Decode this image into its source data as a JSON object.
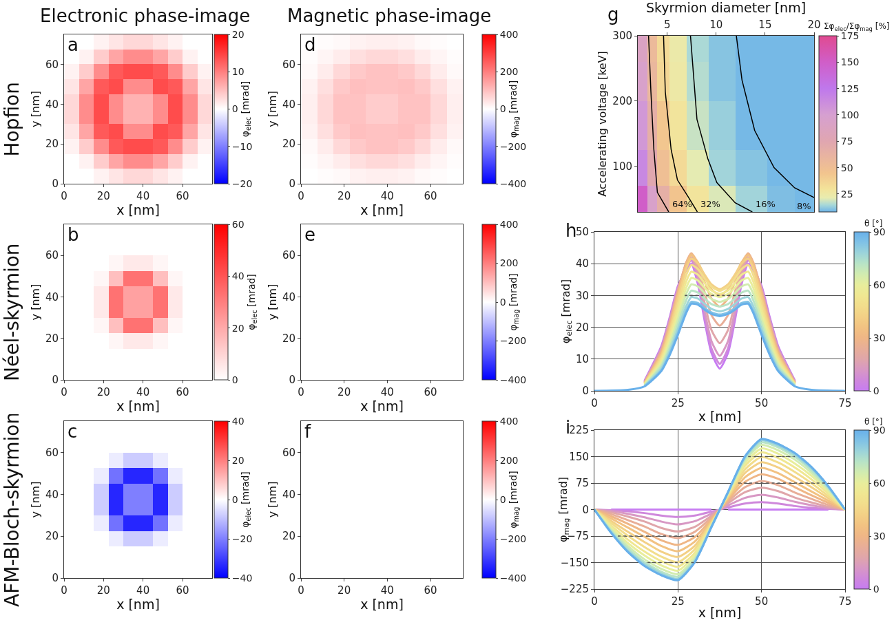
{
  "chart_data": [
    {
      "type": "heatmap",
      "title": "Electronic phase-image",
      "xlabel": "x [nm]",
      "ylabel": "y [nm]",
      "clabel": "φ$_{elec}$ [mrad]",
      "annotations": [
        "a",
        "Hopfion"
      ],
      "x": [
        3.75,
        11.25,
        18.75,
        26.25,
        33.75,
        41.25,
        48.75,
        56.25,
        63.75,
        71.25
      ],
      "y": [
        71.25,
        63.75,
        56.25,
        48.75,
        41.25,
        33.75,
        26.25,
        18.75,
        11.25,
        3.75
      ],
      "cells": [
        [
          0,
          0,
          1,
          2,
          3,
          3,
          2,
          1,
          0,
          0
        ],
        [
          0,
          1,
          4,
          7,
          9,
          9,
          7,
          4,
          1,
          0
        ],
        [
          1,
          4,
          9,
          13,
          14,
          14,
          13,
          9,
          4,
          1
        ],
        [
          2,
          7,
          13,
          14,
          9,
          9,
          14,
          13,
          7,
          2
        ],
        [
          3,
          9,
          14,
          9,
          6,
          6,
          9,
          14,
          9,
          3
        ],
        [
          3,
          9,
          14,
          9,
          6,
          6,
          9,
          14,
          9,
          3
        ],
        [
          2,
          7,
          13,
          14,
          9,
          9,
          14,
          13,
          7,
          2
        ],
        [
          1,
          4,
          9,
          13,
          14,
          14,
          13,
          9,
          4,
          1
        ],
        [
          0,
          1,
          4,
          7,
          9,
          9,
          7,
          4,
          1,
          0
        ],
        [
          0,
          0,
          1,
          2,
          3,
          3,
          2,
          1,
          0,
          0
        ]
      ],
      "xlim": [
        0,
        75
      ],
      "ylim": [
        0,
        75
      ],
      "xticks": [
        0,
        20,
        40,
        60
      ],
      "yticks": [
        0,
        20,
        40,
        60
      ],
      "clim": [
        -20,
        20
      ],
      "cticks": [
        -20,
        -10,
        0,
        10,
        20
      ]
    },
    {
      "type": "heatmap",
      "xlabel": "x [nm]",
      "ylabel": "y [nm]",
      "clabel": "φ$_{elec}$ [mrad]",
      "annotations": [
        "b",
        "Néel-skyrmion"
      ],
      "x": [
        3.75,
        11.25,
        18.75,
        26.25,
        33.75,
        41.25,
        48.75,
        56.25,
        63.75,
        71.25
      ],
      "y": [
        71.25,
        63.75,
        56.25,
        48.75,
        41.25,
        33.75,
        26.25,
        18.75,
        11.25,
        3.75
      ],
      "cells": [
        [
          0,
          0,
          0,
          0,
          0,
          0,
          0,
          0,
          0,
          0
        ],
        [
          0,
          0,
          0,
          0,
          0,
          0,
          0,
          0,
          0,
          0
        ],
        [
          0,
          0,
          0,
          2,
          5,
          5,
          2,
          0,
          0,
          0
        ],
        [
          0,
          0,
          2,
          15,
          33,
          33,
          15,
          2,
          0,
          0
        ],
        [
          0,
          0,
          5,
          33,
          22,
          22,
          33,
          5,
          0,
          0
        ],
        [
          0,
          0,
          5,
          33,
          22,
          22,
          33,
          5,
          0,
          0
        ],
        [
          0,
          0,
          2,
          15,
          33,
          33,
          15,
          2,
          0,
          0
        ],
        [
          0,
          0,
          0,
          2,
          5,
          5,
          2,
          0,
          0,
          0
        ],
        [
          0,
          0,
          0,
          0,
          0,
          0,
          0,
          0,
          0,
          0
        ],
        [
          0,
          0,
          0,
          0,
          0,
          0,
          0,
          0,
          0,
          0
        ]
      ],
      "xlim": [
        0,
        75
      ],
      "ylim": [
        0,
        75
      ],
      "xticks": [
        0,
        20,
        40,
        60
      ],
      "yticks": [
        0,
        20,
        40,
        60
      ],
      "clim": [
        0,
        60
      ],
      "cticks": [
        0,
        20,
        40,
        60
      ]
    },
    {
      "type": "heatmap",
      "xlabel": "x [nm]",
      "ylabel": "y [nm]",
      "clabel": "φ$_{elec}$ [mrad]",
      "annotations": [
        "c",
        "AFM-Bloch-skyrmion"
      ],
      "x": [
        3.75,
        11.25,
        18.75,
        26.25,
        33.75,
        41.25,
        48.75,
        56.25,
        63.75,
        71.25
      ],
      "y": [
        71.25,
        63.75,
        56.25,
        48.75,
        41.25,
        33.75,
        26.25,
        18.75,
        11.25,
        3.75
      ],
      "cells": [
        [
          0,
          0,
          0,
          0,
          0,
          0,
          0,
          0,
          0,
          0
        ],
        [
          0,
          0,
          0,
          0,
          0,
          0,
          0,
          0,
          0,
          0
        ],
        [
          0,
          0,
          0,
          -3,
          -8,
          -8,
          -3,
          0,
          0,
          0
        ],
        [
          0,
          0,
          -3,
          -22,
          -34,
          -34,
          -22,
          -3,
          0,
          0
        ],
        [
          0,
          0,
          -8,
          -34,
          -20,
          -20,
          -34,
          -8,
          0,
          0
        ],
        [
          0,
          0,
          -8,
          -34,
          -20,
          -20,
          -34,
          -8,
          0,
          0
        ],
        [
          0,
          0,
          -3,
          -22,
          -34,
          -34,
          -22,
          -3,
          0,
          0
        ],
        [
          0,
          0,
          0,
          -3,
          -8,
          -8,
          -3,
          0,
          0,
          0
        ],
        [
          0,
          0,
          0,
          0,
          0,
          0,
          0,
          0,
          0,
          0
        ],
        [
          0,
          0,
          0,
          0,
          0,
          0,
          0,
          0,
          0,
          0
        ]
      ],
      "xlim": [
        0,
        75
      ],
      "ylim": [
        0,
        75
      ],
      "xticks": [
        0,
        20,
        40,
        60
      ],
      "yticks": [
        0,
        20,
        40,
        60
      ],
      "clim": [
        -40,
        40
      ],
      "cticks": [
        -40,
        -20,
        0,
        20,
        40
      ]
    },
    {
      "type": "heatmap",
      "title": "Magnetic phase-image",
      "xlabel": "x [nm]",
      "ylabel": "y [nm]",
      "clabel": "φ$_{mag}$ [mrad]",
      "annotations": [
        "d"
      ],
      "x": [
        3.75,
        11.25,
        18.75,
        26.25,
        33.75,
        41.25,
        48.75,
        56.25,
        63.75,
        71.25
      ],
      "y": [
        71.25,
        63.75,
        56.25,
        48.75,
        41.25,
        33.75,
        26.25,
        18.75,
        11.25,
        3.75
      ],
      "cells": [
        [
          0,
          5,
          10,
          20,
          25,
          25,
          20,
          10,
          5,
          0
        ],
        [
          5,
          15,
          30,
          50,
          60,
          60,
          50,
          30,
          15,
          5
        ],
        [
          10,
          30,
          60,
          85,
          95,
          95,
          85,
          60,
          30,
          10
        ],
        [
          20,
          50,
          85,
          100,
          95,
          95,
          100,
          85,
          50,
          20
        ],
        [
          25,
          60,
          95,
          95,
          80,
          80,
          95,
          95,
          60,
          25
        ],
        [
          25,
          60,
          95,
          95,
          80,
          80,
          95,
          95,
          60,
          25
        ],
        [
          20,
          50,
          85,
          100,
          95,
          95,
          100,
          85,
          50,
          20
        ],
        [
          10,
          30,
          60,
          85,
          95,
          95,
          85,
          60,
          30,
          10
        ],
        [
          5,
          15,
          30,
          50,
          60,
          60,
          50,
          30,
          15,
          5
        ],
        [
          0,
          5,
          10,
          20,
          25,
          25,
          20,
          10,
          5,
          0
        ]
      ],
      "xlim": [
        0,
        75
      ],
      "ylim": [
        0,
        75
      ],
      "xticks": [
        0,
        20,
        40,
        60
      ],
      "yticks": [
        0,
        20,
        40,
        60
      ],
      "clim": [
        -400,
        400
      ],
      "cticks": [
        -400,
        -200,
        0,
        200,
        400
      ]
    },
    {
      "type": "heatmap",
      "xlabel": "x [nm]",
      "ylabel": "y [nm]",
      "clabel": "φ$_{mag}$ [mrad]",
      "annotations": [
        "e"
      ],
      "x": [
        3.75,
        11.25,
        18.75,
        26.25,
        33.75,
        41.25,
        48.75,
        56.25,
        63.75,
        71.25
      ],
      "y": [
        71.25,
        63.75,
        56.25,
        48.75,
        41.25,
        33.75,
        26.25,
        18.75,
        11.25,
        3.75
      ],
      "cells": [
        [
          0,
          0,
          0,
          0,
          0,
          0,
          0,
          0,
          0,
          0
        ],
        [
          0,
          0,
          0,
          0,
          0,
          0,
          0,
          0,
          0,
          0
        ],
        [
          0,
          0,
          0,
          0,
          0,
          0,
          0,
          0,
          0,
          0
        ],
        [
          0,
          0,
          0,
          0,
          0,
          0,
          0,
          0,
          0,
          0
        ],
        [
          0,
          0,
          0,
          0,
          0,
          0,
          0,
          0,
          0,
          0
        ],
        [
          0,
          0,
          0,
          0,
          0,
          0,
          0,
          0,
          0,
          0
        ],
        [
          0,
          0,
          0,
          0,
          0,
          0,
          0,
          0,
          0,
          0
        ],
        [
          0,
          0,
          0,
          0,
          0,
          0,
          0,
          0,
          0,
          0
        ],
        [
          0,
          0,
          0,
          0,
          0,
          0,
          0,
          0,
          0,
          0
        ],
        [
          0,
          0,
          0,
          0,
          0,
          0,
          0,
          0,
          0,
          0
        ]
      ],
      "xlim": [
        0,
        75
      ],
      "ylim": [
        0,
        75
      ],
      "xticks": [
        0,
        20,
        40,
        60
      ],
      "yticks": [
        0,
        20,
        40,
        60
      ],
      "clim": [
        -400,
        400
      ],
      "cticks": [
        -400,
        -200,
        0,
        200,
        400
      ]
    },
    {
      "type": "heatmap",
      "xlabel": "x [nm]",
      "ylabel": "y [nm]",
      "clabel": "φ$_{mag}$ [mrad]",
      "annotations": [
        "f"
      ],
      "x": [
        3.75,
        11.25,
        18.75,
        26.25,
        33.75,
        41.25,
        48.75,
        56.25,
        63.75,
        71.25
      ],
      "y": [
        71.25,
        63.75,
        56.25,
        48.75,
        41.25,
        33.75,
        26.25,
        18.75,
        11.25,
        3.75
      ],
      "cells": [
        [
          0,
          0,
          0,
          0,
          0,
          0,
          0,
          0,
          0,
          0
        ],
        [
          0,
          0,
          0,
          0,
          0,
          0,
          0,
          0,
          0,
          0
        ],
        [
          0,
          0,
          0,
          0,
          0,
          0,
          0,
          0,
          0,
          0
        ],
        [
          0,
          0,
          0,
          0,
          0,
          0,
          0,
          0,
          0,
          0
        ],
        [
          0,
          0,
          0,
          0,
          0,
          0,
          0,
          0,
          0,
          0
        ],
        [
          0,
          0,
          0,
          0,
          0,
          0,
          0,
          0,
          0,
          0
        ],
        [
          0,
          0,
          0,
          0,
          0,
          0,
          0,
          0,
          0,
          0
        ],
        [
          0,
          0,
          0,
          0,
          0,
          0,
          0,
          0,
          0,
          0
        ],
        [
          0,
          0,
          0,
          0,
          0,
          0,
          0,
          0,
          0,
          0
        ],
        [
          0,
          0,
          0,
          0,
          0,
          0,
          0,
          0,
          0,
          0
        ]
      ],
      "xlim": [
        0,
        75
      ],
      "ylim": [
        0,
        75
      ],
      "xticks": [
        0,
        20,
        40,
        60
      ],
      "yticks": [
        0,
        20,
        40,
        60
      ],
      "clim": [
        -400,
        400
      ],
      "cticks": [
        -400,
        -200,
        0,
        200,
        400
      ]
    },
    {
      "type": "heatmap",
      "xlabel": "Skyrmion diameter [nm]",
      "ylabel": "Accelerating voltage [keV]",
      "clabel": "Σφ$_{elec}$/Σφ$_{mag}$ [%]",
      "annotations": [
        "g",
        "64%",
        "32%",
        "16%",
        "8%"
      ],
      "x": [
        2.5,
        3.5,
        4.5,
        6,
        8,
        10.5,
        13.5,
        17,
        19
      ],
      "y": [
        280,
        240,
        160,
        90,
        50
      ],
      "cells": [
        [
          90,
          55,
          34,
          24,
          15,
          11,
          9,
          9,
          9
        ],
        [
          95,
          58,
          36,
          25,
          16,
          11,
          9,
          9,
          9
        ],
        [
          105,
          66,
          44,
          29,
          18,
          13,
          9,
          9,
          9
        ],
        [
          115,
          74,
          50,
          34,
          21,
          14,
          11,
          9,
          9
        ],
        [
          150,
          95,
          66,
          45,
          29,
          20,
          14,
          10,
          9
        ]
      ],
      "series": [
        {
          "type": "line",
          "color": "#000000",
          "x": [
            3.1,
            3.34,
            3.64,
            4.0,
            5.16
          ],
          "values": [
            300,
            214,
            126,
            60,
            30
          ]
        },
        {
          "type": "line",
          "color": "#000000",
          "x": [
            4.63,
            4.81,
            5.4,
            6.05,
            7.03,
            8.08
          ],
          "values": [
            300,
            214,
            126,
            79,
            56,
            30
          ]
        },
        {
          "type": "line",
          "color": "#000000",
          "x": [
            7.38,
            8.04,
            9.14,
            10.07,
            11.94,
            13.69
          ],
          "values": [
            300,
            172,
            112,
            75,
            44,
            30
          ]
        },
        {
          "type": "line",
          "color": "#000000",
          "x": [
            12.06,
            12.64,
            13.93,
            15.91,
            18.01,
            20
          ],
          "values": [
            300,
            232,
            155,
            98,
            67,
            52
          ]
        }
      ],
      "xlim": [
        2,
        20
      ],
      "ylim": [
        30,
        300
      ],
      "xticks": [
        5,
        10,
        15,
        20
      ],
      "yticks": [
        100,
        200,
        300
      ],
      "clim": [
        8,
        175
      ],
      "cticks": [
        25,
        50,
        75,
        100,
        125,
        150,
        175
      ]
    },
    {
      "type": "line",
      "xlabel": "x [nm]",
      "ylabel": "φ$_{elec}$ [mrad]",
      "clabel": "θ [°]",
      "annotations": [
        "h"
      ],
      "x": [
        0,
        10,
        15,
        20,
        22.5,
        25,
        27.5,
        29,
        31,
        33,
        35,
        37.5,
        40,
        42,
        44,
        46,
        47.5,
        50,
        52.5,
        55,
        60,
        65,
        75
      ],
      "series": [
        {
          "color": "#c77cf2",
          "values": [
            null,
            null,
            3.2,
            14,
            23,
            33,
            38,
            40,
            33.4,
            21.9,
            12,
            7,
            12,
            21.9,
            33.4,
            40,
            38,
            33,
            23,
            14,
            3.2,
            null,
            null
          ]
        },
        {
          "color": "#cf88dc",
          "values": [
            null,
            null,
            3,
            13.6,
            22.5,
            32.6,
            38.8,
            41,
            34.5,
            23.1,
            13.4,
            8.5,
            13.4,
            23.1,
            34.5,
            41,
            38.8,
            32.6,
            22.5,
            13.6,
            3,
            null,
            null
          ]
        },
        {
          "color": "#d898c4",
          "values": [
            null,
            null,
            2.8,
            13.2,
            22,
            32.2,
            39.5,
            41.9,
            35.8,
            25,
            15.7,
            11,
            15.7,
            25,
            35.8,
            41.9,
            39.5,
            32.2,
            22,
            13.2,
            2.8,
            null,
            null
          ]
        },
        {
          "color": "#e0a6aa",
          "values": [
            null,
            null,
            2.7,
            12.8,
            21.5,
            31.8,
            40.2,
            42.8,
            37.4,
            27.6,
            19.2,
            15,
            19.2,
            27.6,
            37.4,
            42.8,
            40.2,
            31.8,
            21.5,
            12.8,
            2.7,
            null,
            null
          ]
        },
        {
          "color": "#e8ae98",
          "values": [
            null,
            null,
            2.6,
            12.4,
            21,
            31.4,
            40.5,
            43.3,
            38.9,
            30.9,
            23.9,
            20.5,
            23.9,
            30.9,
            38.9,
            43.3,
            40.5,
            31.4,
            21,
            12.4,
            2.6,
            null,
            null
          ]
        },
        {
          "color": "#efb686",
          "values": [
            null,
            null,
            2.5,
            12,
            20.3,
            30.9,
            40.3,
            43.2,
            40.1,
            34.2,
            29.1,
            26.5,
            29.1,
            34.2,
            40.1,
            43.2,
            40.3,
            30.9,
            20.3,
            12,
            2.5,
            null,
            null
          ]
        },
        {
          "color": "#f2c282",
          "values": [
            null,
            null,
            2.4,
            11.5,
            19.8,
            30.2,
            39.6,
            42.7,
            40.4,
            35.9,
            32,
            30,
            32,
            35.9,
            40.4,
            42.7,
            39.6,
            30.2,
            19.8,
            11.5,
            2.4,
            null,
            null
          ]
        },
        {
          "color": "#f3d086",
          "values": [
            null,
            null,
            2.3,
            11,
            19,
            29.1,
            38.5,
            41.6,
            40,
            36.5,
            33.5,
            32,
            33.5,
            36.5,
            40,
            41.6,
            38.5,
            29.1,
            19,
            11,
            2.3,
            null,
            null
          ]
        },
        {
          "color": "#f2dd8c",
          "values": [
            null,
            null,
            2.2,
            10.3,
            17.9,
            27.4,
            36.5,
            39.6,
            38.3,
            35.3,
            32.8,
            31.5,
            32.8,
            35.3,
            38.3,
            39.6,
            36.5,
            27.4,
            17.9,
            10.3,
            2.2,
            null,
            null
          ]
        },
        {
          "color": "#f0e792",
          "values": [
            null,
            null,
            2.1,
            9.6,
            16.7,
            25.8,
            34.5,
            37.5,
            36.5,
            33.9,
            31.6,
            30.5,
            31.6,
            33.9,
            36.5,
            37.5,
            34.5,
            25.8,
            16.7,
            9.6,
            2.1,
            null,
            null
          ]
        },
        {
          "color": "#e8ee9c",
          "values": [
            null,
            null,
            1.9,
            8.9,
            15.6,
            24.1,
            32.5,
            35.5,
            34.7,
            32.4,
            30.5,
            29.5,
            30.5,
            32.4,
            34.7,
            35.5,
            32.5,
            24.1,
            15.6,
            8.9,
            1.9,
            null,
            null
          ]
        },
        {
          "color": "#d2ecb0",
          "values": [
            null,
            null,
            1.8,
            8.2,
            14.5,
            22.5,
            30.6,
            33.5,
            32.8,
            30.7,
            28.9,
            28,
            28.9,
            30.7,
            32.8,
            33.5,
            30.6,
            22.5,
            14.5,
            8.2,
            1.8,
            null,
            null
          ]
        },
        {
          "color": "#b8e4c6",
          "values": [
            null,
            null,
            1.7,
            7.6,
            13.4,
            20.9,
            28.6,
            31.5,
            30.9,
            29,
            27.3,
            26.5,
            27.3,
            29,
            30.9,
            31.5,
            28.6,
            20.9,
            13.4,
            7.6,
            1.7,
            null,
            null
          ]
        },
        {
          "color": "#9cd4da",
          "values": [
            null,
            null,
            1.5,
            6.9,
            12.4,
            19.4,
            26.7,
            29.5,
            29,
            27.3,
            25.8,
            25,
            25.8,
            27.3,
            29,
            29.5,
            26.7,
            19.4,
            12.4,
            6.9,
            1.5,
            null,
            null
          ]
        },
        {
          "color": "#80c2e6",
          "values": [
            null,
            null,
            1.4,
            6.4,
            11.6,
            18.2,
            25.2,
            28,
            27.6,
            26,
            24.7,
            24,
            24.7,
            26,
            27.6,
            28,
            25.2,
            18.2,
            11.6,
            6.4,
            1.4,
            null,
            null
          ]
        },
        {
          "color": "#68b0ea",
          "values": [
            0,
            0.3,
            1.4,
            6.2,
            11.2,
            17.6,
            24.6,
            27.4,
            27.1,
            25.5,
            24.2,
            23.5,
            24.2,
            25.5,
            27.1,
            27.4,
            24.6,
            17.6,
            11.2,
            6.2,
            1.4,
            0.3,
            0
          ]
        },
        {
          "color": "#555555",
          "line_style": "dashed",
          "x": [
            27,
            45
          ],
          "values": [
            30,
            30
          ]
        }
      ],
      "xlim": [
        0,
        75
      ],
      "ylim": [
        0,
        50
      ],
      "xticks": [
        0,
        25,
        50,
        75
      ],
      "yticks": [
        0,
        10,
        20,
        30,
        40,
        50
      ],
      "clim": [
        0,
        90
      ],
      "cticks": [
        0,
        30,
        60,
        90
      ],
      "grid": true
    },
    {
      "type": "line",
      "xlabel": "x [nm]",
      "ylabel": "φ$_{mag}$ [mrad]",
      "clabel": "θ [°]",
      "annotations": [
        "i"
      ],
      "x": [
        0,
        5,
        10,
        15,
        20,
        25,
        30,
        35,
        37.5,
        40,
        45,
        50,
        55,
        60,
        65,
        70,
        75
      ],
      "series": [
        {
          "color": "#c77cf2",
          "values": [
            null,
            0,
            0,
            0,
            0,
            0,
            0,
            0,
            null,
            0,
            0,
            0,
            0,
            0,
            0,
            0,
            null
          ]
        },
        {
          "color": "#cf88dc",
          "values": [
            0,
            -2,
            -5,
            -10,
            -17,
            -21,
            -17,
            -6,
            0,
            6,
            17,
            21,
            17,
            10,
            5,
            2,
            0
          ]
        },
        {
          "color": "#d898c4",
          "values": [
            0,
            -4,
            -12,
            -22,
            -34,
            -42,
            -33,
            -12,
            0,
            12,
            33,
            42,
            34,
            22,
            12,
            4,
            0
          ]
        },
        {
          "color": "#e0a6aa",
          "values": [
            0,
            -8,
            -20,
            -34,
            -52,
            -62,
            -49,
            -18,
            0,
            18,
            49,
            62,
            52,
            34,
            20,
            8,
            0
          ]
        },
        {
          "color": "#e8ae98",
          "values": [
            0,
            -13,
            -30,
            -48,
            -69,
            -81,
            -63,
            -23,
            0,
            23,
            63,
            81,
            69,
            48,
            30,
            13,
            0
          ]
        },
        {
          "color": "#efb686",
          "values": [
            0,
            -19,
            -40,
            -63,
            -87,
            -100,
            -78,
            -28,
            0,
            28,
            78,
            100,
            87,
            63,
            40,
            19,
            0
          ]
        },
        {
          "color": "#f2c282",
          "values": [
            0,
            -25,
            -51,
            -77,
            -103,
            -118,
            -91,
            -32,
            0,
            32,
            91,
            118,
            103,
            77,
            51,
            25,
            0
          ]
        },
        {
          "color": "#f3d086",
          "values": [
            0,
            -32,
            -63,
            -92,
            -119,
            -134,
            -103,
            -36,
            0,
            36,
            103,
            134,
            119,
            92,
            63,
            32,
            0
          ]
        },
        {
          "color": "#f2dd8c",
          "values": [
            0,
            -38,
            -74,
            -106,
            -133,
            -149,
            -113,
            -39,
            0,
            39,
            113,
            149,
            133,
            106,
            74,
            38,
            0
          ]
        },
        {
          "color": "#f0e792",
          "values": [
            0,
            -45,
            -85,
            -119,
            -146,
            -162,
            -123,
            -42,
            0,
            42,
            123,
            162,
            146,
            119,
            85,
            45,
            0
          ]
        },
        {
          "color": "#e8ee9c",
          "values": [
            0,
            -51,
            -95,
            -130,
            -158,
            -173,
            -131,
            -45,
            0,
            45,
            131,
            173,
            158,
            130,
            95,
            51,
            0
          ]
        },
        {
          "color": "#d2ecb0",
          "values": [
            0,
            -56,
            -103,
            -141,
            -168,
            -183,
            -138,
            -46,
            0,
            46,
            138,
            183,
            168,
            141,
            103,
            56,
            0
          ]
        },
        {
          "color": "#b8e4c6",
          "values": [
            0,
            -60,
            -110,
            -149,
            -176,
            -190,
            -143,
            -48,
            0,
            48,
            143,
            190,
            176,
            149,
            110,
            60,
            0
          ]
        },
        {
          "color": "#9cd4da",
          "values": [
            0,
            -63,
            -116,
            -155,
            -181,
            -196,
            -147,
            -49,
            0,
            49,
            147,
            196,
            181,
            155,
            116,
            63,
            0
          ]
        },
        {
          "color": "#80c2e6",
          "values": [
            0,
            -65,
            -119,
            -159,
            -185,
            -199,
            -149,
            -50,
            0,
            50,
            149,
            199,
            185,
            159,
            119,
            65,
            0
          ]
        },
        {
          "color": "#68b0ea",
          "values": [
            0,
            -66,
            -120,
            -160,
            -186,
            -200,
            -150,
            -50,
            0,
            50,
            150,
            200,
            186,
            160,
            120,
            66,
            0
          ]
        },
        {
          "color": "#555555",
          "line_style": "dashed",
          "x": [
            7,
            31
          ],
          "values": [
            -75,
            -75
          ]
        },
        {
          "color": "#555555",
          "line_style": "dashed",
          "x": [
            16,
            31
          ],
          "values": [
            -150,
            -150
          ]
        },
        {
          "color": "#555555",
          "line_style": "dashed",
          "x": [
            43,
            70
          ],
          "values": [
            75,
            75
          ]
        },
        {
          "color": "#555555",
          "line_style": "dashed",
          "x": [
            46,
            60
          ],
          "values": [
            150,
            150
          ]
        }
      ],
      "xlim": [
        0,
        75
      ],
      "ylim": [
        -225,
        225
      ],
      "xticks": [
        0,
        25,
        50,
        75
      ],
      "yticks": [
        -225,
        -150,
        -75,
        0,
        75,
        150,
        225
      ],
      "clim": [
        0,
        90
      ],
      "cticks": [
        0,
        30,
        60,
        90
      ],
      "grid": true
    }
  ]
}
